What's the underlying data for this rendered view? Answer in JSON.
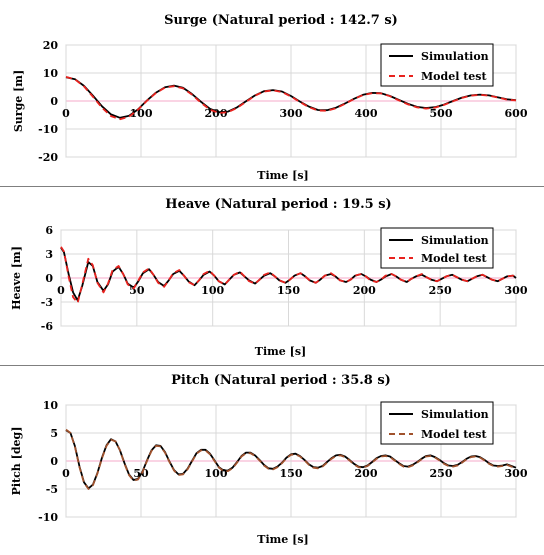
{
  "chart_data": [
    {
      "type": "line",
      "title": "Surge (Natural period : 142.7 s)",
      "xlabel": "Time [s]",
      "ylabel": "Surge [m]",
      "xlim": [
        0,
        600
      ],
      "ylim": [
        -20,
        20
      ],
      "xticks": [
        0,
        100,
        200,
        300,
        400,
        500,
        600
      ],
      "yticks": [
        -20,
        -10,
        0,
        10,
        20
      ],
      "legend": "top-right",
      "zero_line_color": "#f4a9c8",
      "series": [
        {
          "name": "Simulation",
          "color": "#000000",
          "dash": "solid",
          "x": [
            0,
            12,
            24,
            36,
            48,
            60,
            72,
            84,
            96,
            108,
            120,
            132,
            144,
            156,
            168,
            180,
            192,
            204,
            216,
            228,
            240,
            252,
            264,
            276,
            288,
            300,
            312,
            324,
            336,
            348,
            360,
            372,
            384,
            396,
            408,
            420,
            432,
            444,
            456,
            468,
            480,
            492,
            504,
            516,
            528,
            540,
            552,
            564,
            576,
            588,
            600
          ],
          "y": [
            8.5,
            7.8,
            5.4,
            1.9,
            -1.9,
            -4.8,
            -6.0,
            -5.3,
            -3.0,
            0.2,
            3.0,
            4.9,
            5.5,
            4.7,
            2.5,
            -0.3,
            -2.8,
            -4.0,
            -3.8,
            -2.3,
            -0.1,
            2.0,
            3.5,
            3.9,
            3.4,
            1.8,
            -0.2,
            -2.0,
            -3.2,
            -3.3,
            -2.4,
            -0.9,
            0.8,
            2.2,
            2.9,
            2.8,
            1.8,
            0.4,
            -1.0,
            -2.1,
            -2.5,
            -2.2,
            -1.3,
            0.0,
            1.2,
            2.0,
            2.3,
            2.0,
            1.3,
            0.6,
            0.3
          ]
        },
        {
          "name": "Model test",
          "color": "#e8221e",
          "dash": "dashed",
          "x": [
            0,
            12,
            24,
            36,
            48,
            60,
            72,
            84,
            96,
            108,
            120,
            132,
            144,
            156,
            168,
            180,
            192,
            204,
            216,
            228,
            240,
            252,
            264,
            276,
            288,
            300,
            312,
            324,
            336,
            348,
            360,
            372,
            384,
            396,
            408,
            420,
            432,
            444,
            456,
            468,
            480,
            492,
            504,
            516,
            528,
            540,
            552,
            564,
            576,
            588,
            600
          ],
          "y": [
            8.6,
            7.7,
            5.2,
            1.5,
            -2.4,
            -5.4,
            -6.5,
            -5.6,
            -3.1,
            0.1,
            2.9,
            4.8,
            5.3,
            4.5,
            2.3,
            -0.6,
            -3.1,
            -4.3,
            -4.0,
            -2.5,
            -0.3,
            1.9,
            3.4,
            3.8,
            3.2,
            1.6,
            -0.4,
            -2.2,
            -3.4,
            -3.5,
            -2.6,
            -1.0,
            0.7,
            2.1,
            2.8,
            2.7,
            1.7,
            0.2,
            -1.2,
            -2.3,
            -2.7,
            -2.4,
            -1.4,
            -0.1,
            1.1,
            1.9,
            2.2,
            1.9,
            1.2,
            0.5,
            0.2
          ]
        }
      ]
    },
    {
      "type": "line",
      "title": "Heave (Natural period : 19.5 s)",
      "xlabel": "Time [s]",
      "ylabel": "Heave [m]",
      "xlim": [
        0,
        300
      ],
      "ylim": [
        -6,
        6
      ],
      "xticks": [
        0,
        50,
        100,
        150,
        200,
        250,
        300
      ],
      "yticks": [
        -6,
        -3,
        0,
        3,
        6
      ],
      "legend": "top-right",
      "zero_line_color": "#f4a9c8",
      "series": [
        {
          "name": "Simulation",
          "color": "#000000",
          "dash": "solid",
          "x": [
            0,
            2,
            5,
            8,
            11,
            14,
            18,
            21,
            24,
            28,
            31,
            34,
            38,
            41,
            44,
            48,
            51,
            54,
            58,
            61,
            64,
            68,
            71,
            74,
            78,
            81,
            84,
            88,
            91,
            94,
            98,
            101,
            104,
            108,
            111,
            114,
            118,
            121,
            124,
            128,
            131,
            134,
            138,
            141,
            144,
            148,
            151,
            154,
            158,
            161,
            164,
            168,
            171,
            174,
            178,
            181,
            184,
            188,
            191,
            194,
            198,
            201,
            204,
            208,
            211,
            214,
            218,
            221,
            224,
            228,
            231,
            234,
            238,
            241,
            244,
            248,
            251,
            254,
            258,
            261,
            264,
            268,
            271,
            274,
            278,
            281,
            284,
            288,
            291,
            294,
            298,
            300
          ],
          "y": [
            3.8,
            3.2,
            0.5,
            -1.8,
            -2.8,
            -1.0,
            2.0,
            1.5,
            -0.5,
            -1.6,
            -0.8,
            0.8,
            1.4,
            0.5,
            -0.7,
            -1.2,
            -0.4,
            0.6,
            1.1,
            0.4,
            -0.5,
            -1.0,
            -0.3,
            0.5,
            0.9,
            0.3,
            -0.4,
            -0.9,
            -0.3,
            0.4,
            0.8,
            0.3,
            -0.4,
            -0.8,
            -0.2,
            0.4,
            0.7,
            0.2,
            -0.3,
            -0.7,
            -0.2,
            0.3,
            0.6,
            0.2,
            -0.3,
            -0.6,
            -0.2,
            0.3,
            0.6,
            0.2,
            -0.3,
            -0.6,
            -0.2,
            0.3,
            0.5,
            0.2,
            -0.3,
            -0.5,
            -0.2,
            0.3,
            0.5,
            0.2,
            -0.2,
            -0.5,
            -0.2,
            0.2,
            0.5,
            0.2,
            -0.2,
            -0.5,
            -0.1,
            0.2,
            0.4,
            0.1,
            -0.2,
            -0.4,
            -0.1,
            0.2,
            0.4,
            0.1,
            -0.2,
            -0.4,
            -0.1,
            0.2,
            0.4,
            0.1,
            -0.2,
            -0.4,
            -0.1,
            0.2,
            0.3,
            0.0
          ]
        },
        {
          "name": "Model test",
          "color": "#e8221e",
          "dash": "dashed",
          "x": [
            0,
            2,
            5,
            8,
            11,
            14,
            18,
            21,
            24,
            28,
            31,
            34,
            38,
            41,
            44,
            48,
            51,
            54,
            58,
            61,
            64,
            68,
            71,
            74,
            78,
            81,
            84,
            88,
            91,
            94,
            98,
            101,
            104,
            108,
            111,
            114,
            118,
            121,
            124,
            128,
            131,
            134,
            138,
            141,
            144,
            148,
            151,
            154,
            158,
            161,
            164,
            168,
            171,
            174,
            178,
            181,
            184,
            188,
            191,
            194,
            198,
            201,
            204,
            208,
            211,
            214,
            218,
            221,
            224,
            228,
            231,
            234,
            238,
            241,
            244,
            248,
            251,
            254,
            258,
            261,
            264,
            268,
            271,
            274,
            278,
            281,
            284,
            288,
            291,
            294,
            298,
            300
          ],
          "y": [
            3.9,
            3.3,
            0.2,
            -2.4,
            -3.1,
            -0.8,
            2.4,
            1.6,
            -0.6,
            -1.8,
            -0.7,
            1.0,
            1.5,
            0.5,
            -0.8,
            -1.3,
            -0.3,
            0.7,
            1.2,
            0.4,
            -0.6,
            -1.1,
            -0.3,
            0.6,
            1.0,
            0.3,
            -0.5,
            -0.9,
            -0.3,
            0.5,
            0.9,
            0.3,
            -0.4,
            -0.8,
            -0.2,
            0.4,
            0.8,
            0.2,
            -0.4,
            -0.7,
            -0.2,
            0.4,
            0.7,
            0.2,
            -0.3,
            -0.6,
            -0.2,
            0.3,
            0.6,
            0.2,
            -0.3,
            -0.6,
            -0.2,
            0.3,
            0.6,
            0.2,
            -0.3,
            -0.5,
            -0.2,
            0.3,
            0.5,
            0.2,
            -0.3,
            -0.5,
            -0.2,
            0.3,
            0.5,
            0.2,
            -0.2,
            -0.5,
            -0.1,
            0.2,
            0.5,
            0.1,
            -0.2,
            -0.4,
            -0.1,
            0.2,
            0.4,
            0.1,
            -0.2,
            -0.4,
            -0.1,
            0.2,
            0.4,
            0.1,
            -0.2,
            -0.4,
            -0.1,
            0.2,
            0.3,
            0.0
          ]
        }
      ]
    },
    {
      "type": "line",
      "title": "Pitch (Natural period : 35.8 s)",
      "xlabel": "Time [s]",
      "ylabel": "Pitch [deg]",
      "xlim": [
        0,
        300
      ],
      "ylim": [
        -10,
        10
      ],
      "xticks": [
        0,
        50,
        100,
        150,
        200,
        250,
        300
      ],
      "yticks": [
        -10,
        -5,
        0,
        5,
        10
      ],
      "legend": "top-right",
      "zero_line_color": "#f4a9c8",
      "series": [
        {
          "name": "Simulation",
          "color": "#000000",
          "dash": "solid",
          "x": [
            0,
            3,
            6,
            9,
            12,
            15,
            18,
            21,
            24,
            27,
            30,
            33,
            36,
            39,
            42,
            45,
            48,
            51,
            54,
            57,
            60,
            63,
            66,
            69,
            72,
            75,
            78,
            81,
            84,
            87,
            90,
            93,
            96,
            99,
            102,
            105,
            108,
            111,
            114,
            117,
            120,
            123,
            126,
            129,
            132,
            135,
            138,
            141,
            144,
            147,
            150,
            153,
            156,
            159,
            162,
            165,
            168,
            171,
            174,
            177,
            180,
            183,
            186,
            189,
            192,
            195,
            198,
            201,
            204,
            207,
            210,
            213,
            216,
            219,
            222,
            225,
            228,
            231,
            234,
            237,
            240,
            243,
            246,
            249,
            252,
            255,
            258,
            261,
            264,
            267,
            270,
            273,
            276,
            279,
            282,
            285,
            288,
            291,
            294,
            297,
            300
          ],
          "y": [
            5.5,
            5.0,
            2.6,
            -1.0,
            -3.8,
            -4.9,
            -4.2,
            -2.1,
            0.6,
            2.8,
            3.9,
            3.5,
            1.9,
            -0.4,
            -2.4,
            -3.4,
            -3.2,
            -1.9,
            0.1,
            1.9,
            2.8,
            2.7,
            1.6,
            -0.1,
            -1.6,
            -2.4,
            -2.3,
            -1.4,
            0.0,
            1.4,
            2.0,
            2.0,
            1.3,
            0.1,
            -1.1,
            -1.7,
            -1.7,
            -1.2,
            -0.2,
            0.9,
            1.5,
            1.5,
            1.0,
            0.2,
            -0.7,
            -1.3,
            -1.4,
            -1.0,
            -0.3,
            0.6,
            1.2,
            1.3,
            0.9,
            0.2,
            -0.6,
            -1.1,
            -1.2,
            -0.9,
            -0.2,
            0.5,
            1.0,
            1.1,
            0.8,
            0.2,
            -0.5,
            -1.0,
            -1.1,
            -0.8,
            -0.2,
            0.5,
            0.9,
            1.0,
            0.8,
            0.2,
            -0.4,
            -0.9,
            -1.0,
            -0.7,
            -0.2,
            0.4,
            0.9,
            1.0,
            0.7,
            0.2,
            -0.4,
            -0.8,
            -0.9,
            -0.7,
            -0.2,
            0.4,
            0.8,
            0.9,
            0.7,
            0.2,
            -0.4,
            -0.8,
            -0.9,
            -0.8,
            -0.6,
            -0.9,
            -1.2
          ]
        },
        {
          "name": "Model test",
          "color": "#a0522d",
          "dash": "dashed",
          "x": [
            0,
            3,
            6,
            9,
            12,
            15,
            18,
            21,
            24,
            27,
            30,
            33,
            36,
            39,
            42,
            45,
            48,
            51,
            54,
            57,
            60,
            63,
            66,
            69,
            72,
            75,
            78,
            81,
            84,
            87,
            90,
            93,
            96,
            99,
            102,
            105,
            108,
            111,
            114,
            117,
            120,
            123,
            126,
            129,
            132,
            135,
            138,
            141,
            144,
            147,
            150,
            153,
            156,
            159,
            162,
            165,
            168,
            171,
            174,
            177,
            180,
            183,
            186,
            189,
            192,
            195,
            198,
            201,
            204,
            207,
            210,
            213,
            216,
            219,
            222,
            225,
            228,
            231,
            234,
            237,
            240,
            243,
            246,
            249,
            252,
            255,
            258,
            261,
            264,
            267,
            270,
            273,
            276,
            279,
            282,
            285,
            288,
            291,
            294,
            297,
            300
          ],
          "y": [
            5.6,
            5.0,
            2.5,
            -1.1,
            -3.9,
            -5.0,
            -4.3,
            -2.2,
            0.5,
            2.7,
            3.8,
            3.5,
            1.9,
            -0.5,
            -2.5,
            -3.5,
            -3.3,
            -2.0,
            0.0,
            1.8,
            2.7,
            2.6,
            1.5,
            -0.2,
            -1.7,
            -2.5,
            -2.4,
            -1.5,
            -0.1,
            1.3,
            1.9,
            1.9,
            1.2,
            0.0,
            -1.2,
            -1.8,
            -1.8,
            -1.3,
            -0.3,
            0.8,
            1.4,
            1.4,
            0.9,
            0.1,
            -0.8,
            -1.4,
            -1.5,
            -1.1,
            -0.4,
            0.5,
            1.1,
            1.2,
            0.8,
            0.1,
            -0.7,
            -1.2,
            -1.3,
            -1.0,
            -0.3,
            0.4,
            0.9,
            1.0,
            0.7,
            0.1,
            -0.6,
            -1.1,
            -1.2,
            -0.9,
            -0.3,
            0.4,
            0.8,
            0.9,
            0.7,
            0.1,
            -0.5,
            -1.0,
            -1.1,
            -0.8,
            -0.3,
            0.3,
            0.8,
            0.9,
            0.6,
            0.1,
            -0.5,
            -0.9,
            -1.0,
            -0.8,
            -0.3,
            0.3,
            0.7,
            0.8,
            0.6,
            0.1,
            -0.5,
            -0.9,
            -1.0,
            -0.9,
            -0.7,
            -1.0,
            -1.3
          ]
        }
      ]
    }
  ]
}
